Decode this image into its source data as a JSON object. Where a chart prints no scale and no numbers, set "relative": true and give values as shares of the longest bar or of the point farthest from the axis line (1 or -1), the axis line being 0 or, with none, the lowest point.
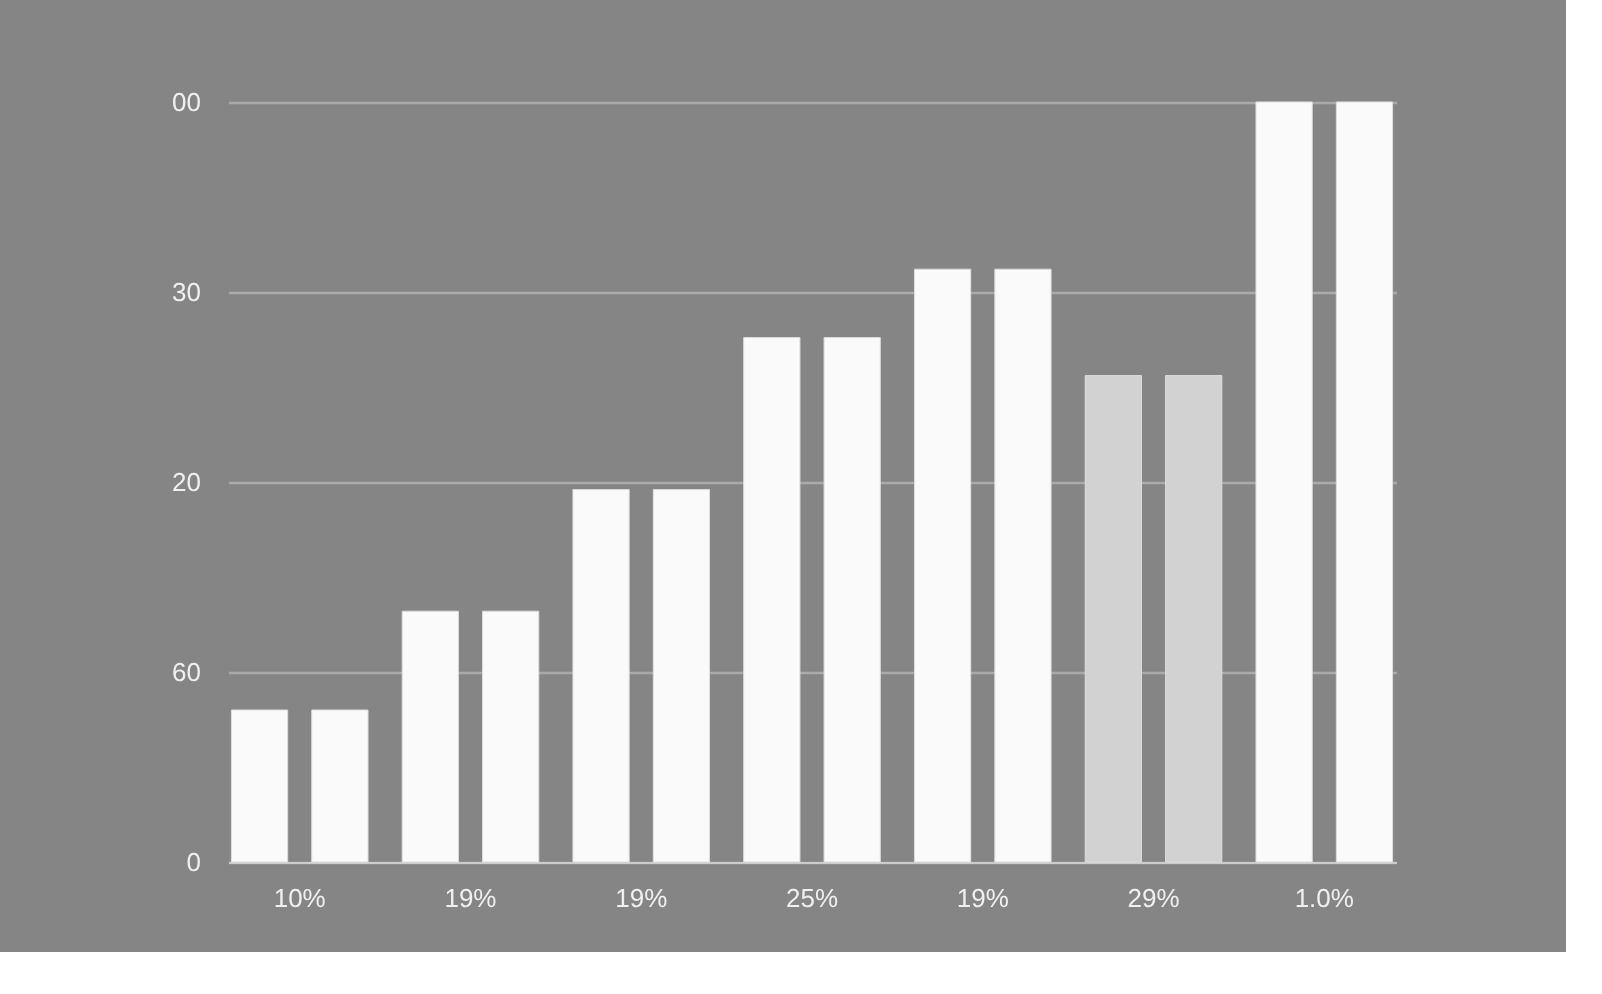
{
  "chart_data": {
    "type": "bar",
    "categories": [
      "10%",
      "19%",
      "19%",
      "25%",
      "19%",
      "29%",
      "1.0%"
    ],
    "series": [
      {
        "colors": [
          "#fafafa",
          "#fafafa",
          "#fafafa",
          "#fafafa",
          "#fafafa",
          "#d2d2d2",
          "#fafafa"
        ],
        "values": [
          0.2,
          0.33,
          0.49,
          0.69,
          0.78,
          0.64,
          1
        ]
      },
      {
        "colors": [
          "#fafafa",
          "#fafafa",
          "#fafafa",
          "#fafafa",
          "#fafafa",
          "#d2d2d2",
          "#fafafa"
        ],
        "values": [
          0.2,
          0.33,
          0.49,
          0.69,
          0.78,
          0.64,
          1
        ]
      }
    ],
    "relative": true,
    "annotations": [
      "00",
      "30",
      "20",
      "60",
      "0"
    ],
    "grid": "y"
  }
}
